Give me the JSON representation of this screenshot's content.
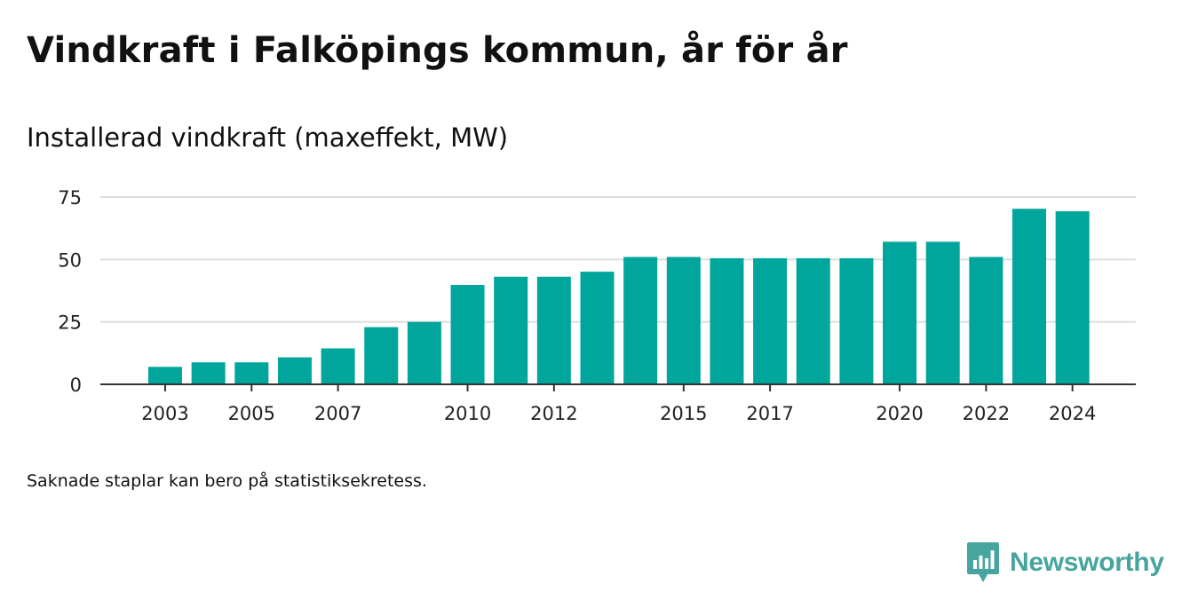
{
  "colors": {
    "bar": "#00a59b",
    "grid": "#dedede",
    "axis": "#333333",
    "brand": "#46a59e"
  },
  "footnote": "Saknade staplar kan bero på statistiksekretess.",
  "brand": {
    "name": "Newsworthy",
    "icon": "bar-chart-speech-bubble-icon"
  },
  "chart_data": {
    "type": "bar",
    "title": "Vindkraft i Falköpings kommun, år för år",
    "subtitle": "Installerad vindkraft (maxeffekt, MW)",
    "x": [
      2003,
      2004,
      2005,
      2006,
      2007,
      2008,
      2009,
      2010,
      2011,
      2012,
      2013,
      2014,
      2015,
      2016,
      2017,
      2018,
      2019,
      2020,
      2021,
      2022,
      2023,
      2024
    ],
    "values": [
      7,
      8.8,
      8.8,
      10.8,
      14.4,
      22.9,
      25,
      39.8,
      43.1,
      43.1,
      45.1,
      51,
      51,
      50.5,
      50.5,
      50.5,
      50.5,
      57.1,
      57.1,
      51,
      70.3,
      69.3
    ],
    "x_tick_labels": [
      "2003",
      "2005",
      "2007",
      "2010",
      "2012",
      "2015",
      "2017",
      "2020",
      "2022",
      "2024"
    ],
    "y_ticks": [
      0,
      25,
      50,
      75
    ],
    "ylim": [
      0,
      75
    ],
    "xlabel": "",
    "ylabel": "",
    "grid": true,
    "legend": "none"
  }
}
